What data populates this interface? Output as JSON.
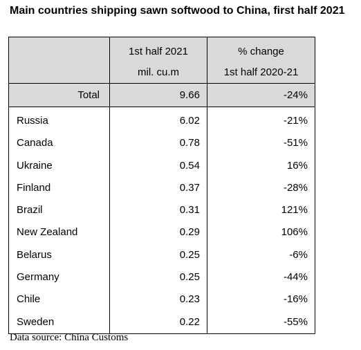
{
  "title": "Main countries shipping sawn softwood to China, first half 2021",
  "headers": {
    "col2_line1": "1st half 2021",
    "col2_line2": "mil. cu.m",
    "col3_line1": "% change",
    "col3_line2": "1st half 2020-21"
  },
  "total": {
    "label": "Total",
    "volume": "9.66",
    "change": "-24%"
  },
  "rows": [
    {
      "country": "Russia",
      "volume": "6.02",
      "change": "-21%"
    },
    {
      "country": "Canada",
      "volume": "0.78",
      "change": "-51%"
    },
    {
      "country": "Ukraine",
      "volume": "0.54",
      "change": "16%"
    },
    {
      "country": "Finland",
      "volume": "0.37",
      "change": "-28%"
    },
    {
      "country": "Brazil",
      "volume": "0.31",
      "change": "121%"
    },
    {
      "country": "New Zealand",
      "volume": "0.29",
      "change": "106%"
    },
    {
      "country": "Belarus",
      "volume": "0.25",
      "change": "-6%"
    },
    {
      "country": "Germany",
      "volume": "0.25",
      "change": "-44%"
    },
    {
      "country": "Chile",
      "volume": "0.23",
      "change": "-16%"
    },
    {
      "country": "Sweden",
      "volume": "0.22",
      "change": "-55%"
    }
  ],
  "source": "Data source: China Customs",
  "colors": {
    "header_fill": "#d9d9d9",
    "border": "#000000"
  },
  "chart_data": {
    "type": "table",
    "title": "Main countries shipping sawn softwood to China, first half 2021",
    "columns": [
      "",
      "1st half 2021 mil. cu.m",
      "% change 1st half 2020-21"
    ],
    "categories": [
      "Total",
      "Russia",
      "Canada",
      "Ukraine",
      "Finland",
      "Brazil",
      "New Zealand",
      "Belarus",
      "Germany",
      "Chile",
      "Sweden"
    ],
    "series": [
      {
        "name": "1st half 2021 mil. cu.m",
        "values": [
          9.66,
          6.02,
          0.78,
          0.54,
          0.37,
          0.31,
          0.29,
          0.25,
          0.25,
          0.23,
          0.22
        ]
      },
      {
        "name": "% change 1st half 2020-21",
        "values": [
          -24,
          -21,
          -51,
          16,
          -28,
          121,
          106,
          -6,
          -44,
          -16,
          -55
        ]
      }
    ]
  }
}
